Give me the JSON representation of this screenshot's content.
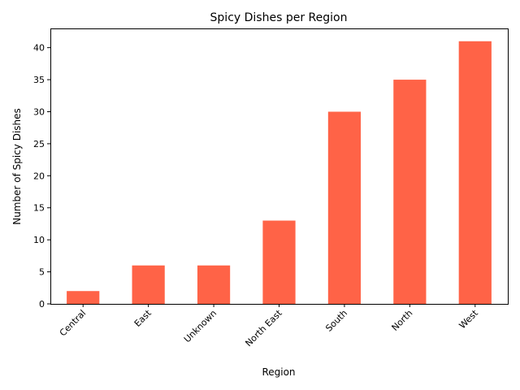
{
  "chart_data": {
    "type": "bar",
    "title": "Spicy Dishes per Region",
    "xlabel": "Region",
    "ylabel": "Number of Spicy Dishes",
    "categories": [
      "Central",
      "East",
      "Unknown",
      "North East",
      "South",
      "North",
      "West"
    ],
    "values": [
      2,
      6,
      6,
      13,
      30,
      35,
      41
    ],
    "ylim": [
      0,
      43
    ],
    "yticks": [
      0,
      5,
      10,
      15,
      20,
      25,
      30,
      35,
      40
    ],
    "bar_color": "#ff6347",
    "grid": false,
    "legend": "none"
  }
}
